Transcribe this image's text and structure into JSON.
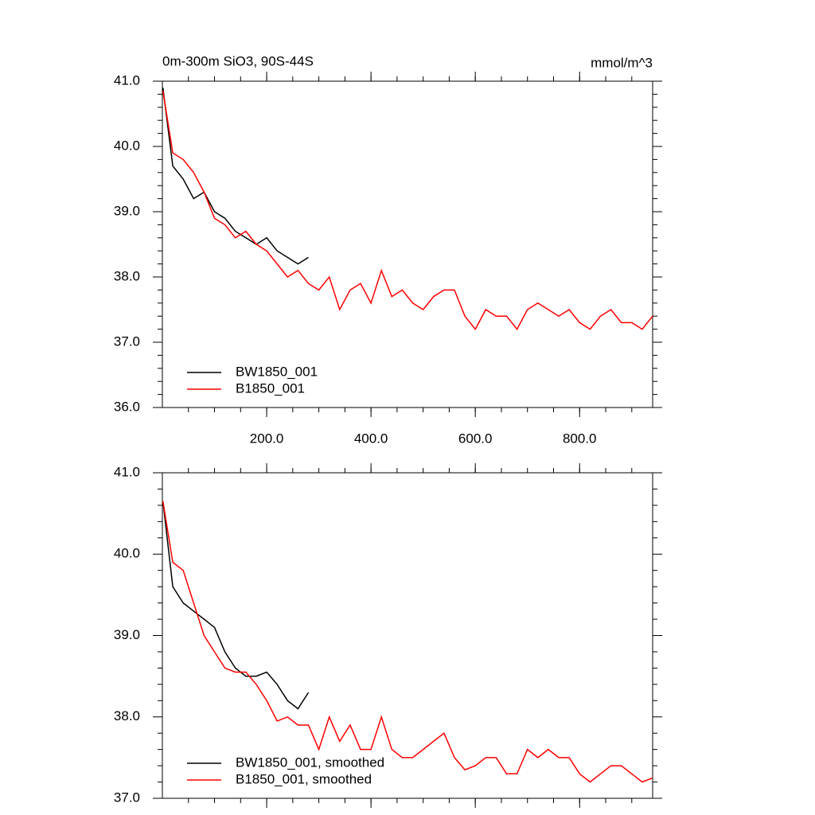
{
  "chart_data": [
    {
      "type": "line",
      "title": "0m-300m SiO3, 90S-44S",
      "units": "mmol/m^3",
      "x": [
        1,
        20,
        40,
        60,
        80,
        100,
        120,
        140,
        160,
        180,
        200,
        220,
        240,
        260,
        280,
        300,
        320,
        340,
        360,
        380,
        400,
        420,
        440,
        460,
        480,
        500,
        520,
        540,
        560,
        580,
        600,
        620,
        640,
        660,
        680,
        700,
        720,
        740,
        760,
        780,
        800,
        820,
        840,
        860,
        880,
        900,
        920,
        940
      ],
      "series": [
        {
          "name": "BW1850_001",
          "color": "#000000",
          "values": [
            40.9,
            39.7,
            39.5,
            39.2,
            39.3,
            39.0,
            38.9,
            38.7,
            38.6,
            38.5,
            38.6,
            38.4,
            38.3,
            38.2,
            38.3,
            null,
            null,
            null,
            null,
            null,
            null,
            null,
            null,
            null,
            null,
            null,
            null,
            null,
            null,
            null,
            null,
            null,
            null,
            null,
            null,
            null,
            null,
            null,
            null,
            null,
            null,
            null,
            null,
            null,
            null,
            null,
            null,
            null
          ]
        },
        {
          "name": "B1850_001",
          "color": "#ff0000",
          "values": [
            40.85,
            39.9,
            39.8,
            39.6,
            39.3,
            38.9,
            38.8,
            38.6,
            38.7,
            38.5,
            38.4,
            38.2,
            38.0,
            38.1,
            37.9,
            37.8,
            38.0,
            37.5,
            37.8,
            37.9,
            37.6,
            38.1,
            37.7,
            37.8,
            37.6,
            37.5,
            37.7,
            37.8,
            37.8,
            37.4,
            37.2,
            37.5,
            37.4,
            37.4,
            37.2,
            37.5,
            37.6,
            37.5,
            37.4,
            37.5,
            37.3,
            37.2,
            37.4,
            37.5,
            37.3,
            37.3,
            37.2,
            37.4
          ]
        }
      ],
      "xlim": [
        0,
        940
      ],
      "ylim": [
        36,
        41
      ],
      "xticks": [
        {
          "value": 200,
          "label": "200.0"
        },
        {
          "value": 400,
          "label": "400.0"
        },
        {
          "value": 600,
          "label": "600.0"
        },
        {
          "value": 800,
          "label": "800.0"
        }
      ],
      "yticks": [
        {
          "value": 36,
          "label": "36.0"
        },
        {
          "value": 37,
          "label": "37.0"
        },
        {
          "value": 38,
          "label": "38.0"
        },
        {
          "value": 39,
          "label": "39.0"
        },
        {
          "value": 40,
          "label": "40.0"
        },
        {
          "value": 41,
          "label": "41.0"
        }
      ],
      "legend": "lower left"
    },
    {
      "type": "line",
      "x": [
        1,
        20,
        40,
        60,
        80,
        100,
        120,
        140,
        160,
        180,
        200,
        220,
        240,
        260,
        280,
        300,
        320,
        340,
        360,
        380,
        400,
        420,
        440,
        460,
        480,
        500,
        520,
        540,
        560,
        580,
        600,
        620,
        640,
        660,
        680,
        700,
        720,
        740,
        760,
        780,
        800,
        820,
        840,
        860,
        880,
        900,
        920,
        940
      ],
      "series": [
        {
          "name": "BW1850_001, smoothed",
          "color": "#000000",
          "values": [
            40.65,
            39.6,
            39.4,
            39.3,
            39.2,
            39.1,
            38.8,
            38.6,
            38.5,
            38.5,
            38.55,
            38.4,
            38.2,
            38.1,
            38.3,
            null,
            null,
            null,
            null,
            null,
            null,
            null,
            null,
            null,
            null,
            null,
            null,
            null,
            null,
            null,
            null,
            null,
            null,
            null,
            null,
            null,
            null,
            null,
            null,
            null,
            null,
            null,
            null,
            null,
            null,
            null,
            null,
            null
          ]
        },
        {
          "name": "B1850_001, smoothed",
          "color": "#ff0000",
          "values": [
            40.65,
            39.9,
            39.8,
            39.4,
            39.0,
            38.8,
            38.6,
            38.55,
            38.55,
            38.4,
            38.2,
            37.95,
            38.0,
            37.9,
            37.9,
            37.6,
            38.0,
            37.7,
            37.9,
            37.6,
            37.6,
            38.0,
            37.6,
            37.5,
            37.5,
            37.6,
            37.7,
            37.8,
            37.5,
            37.35,
            37.4,
            37.5,
            37.5,
            37.3,
            37.3,
            37.6,
            37.5,
            37.6,
            37.5,
            37.5,
            37.3,
            37.2,
            37.3,
            37.4,
            37.4,
            37.3,
            37.2,
            37.25
          ]
        }
      ],
      "xlim": [
        0,
        940
      ],
      "ylim": [
        37,
        41
      ],
      "yticks": [
        {
          "value": 37,
          "label": "37.0"
        },
        {
          "value": 38,
          "label": "38.0"
        },
        {
          "value": 39,
          "label": "39.0"
        },
        {
          "value": 40,
          "label": "40.0"
        },
        {
          "value": 41,
          "label": "41.0"
        }
      ],
      "legend": "lower left"
    }
  ]
}
